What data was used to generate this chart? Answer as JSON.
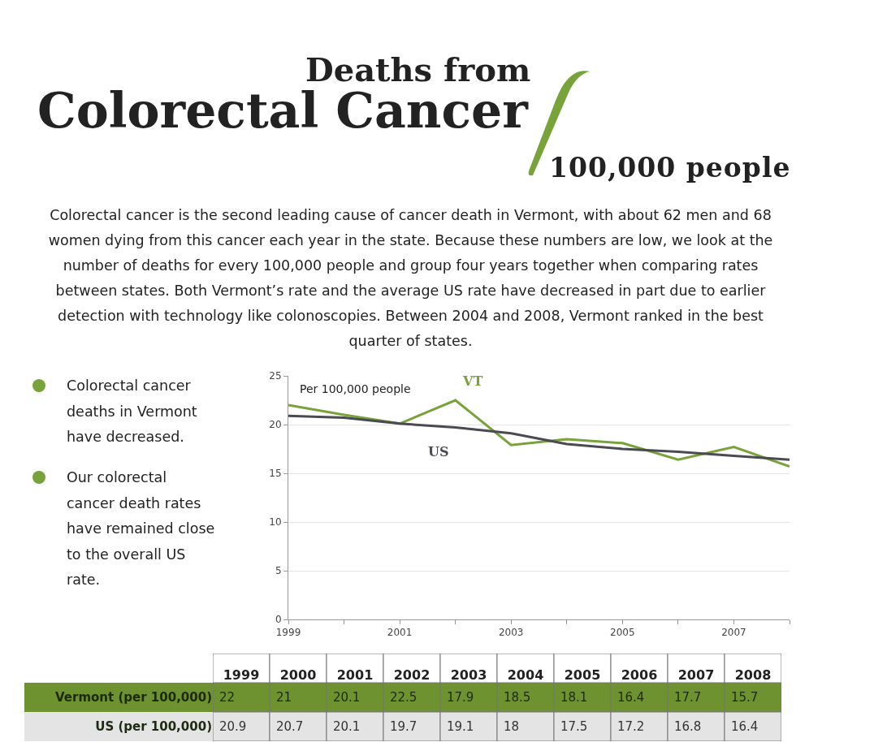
{
  "chart_data": [
    {
      "type": "line",
      "title": "Deaths from Colorectal Cancer",
      "subtitle": "100,000 people",
      "ylabel": "Per 100,000 people",
      "annotations": [
        "Colorectal cancer is the second leading cause of cancer death in Vermont, with about 62 men and 68 women dying from this cancer each year in the state. Because these numbers are low, we look at the number of deaths for every 100,000 people and group four years together when comparing rates between states. Both Vermont’s rate and the average US rate have decreased in part due to earlier detection with technology like colonoscopies. Between 2004 and 2008, Vermont ranked in the best quarter of states.",
        "Colorectal cancer deaths in Vermont have decreased.",
        "Our colorectal cancer death rates have remained close to the overall US rate."
      ],
      "x": [
        1999,
        2000,
        2001,
        2002,
        2003,
        2004,
        2005,
        2006,
        2007,
        2008
      ],
      "series": [
        {
          "name": "VT",
          "color": "#78a23a",
          "values": [
            22,
            21,
            20.1,
            22.5,
            17.9,
            18.5,
            18.1,
            16.4,
            17.7,
            15.7
          ]
        },
        {
          "name": "US",
          "color": "#4a4a52",
          "values": [
            20.9,
            20.7,
            20.1,
            19.7,
            19.1,
            18,
            17.5,
            17.2,
            16.8,
            16.4
          ]
        }
      ],
      "xlim": [
        1999,
        2008
      ],
      "xticks": [
        1999,
        {
          "value": 2000,
          "label": null
        },
        2001,
        {
          "value": 2002,
          "label": null
        },
        2003,
        {
          "value": 2004,
          "label": null
        },
        2005,
        {
          "value": 2006,
          "label": null
        },
        2007,
        {
          "value": 2008,
          "label": null
        }
      ],
      "ylim": [
        0,
        25
      ],
      "yticks": [
        0,
        5,
        10,
        15,
        20,
        25
      ],
      "grid": "y",
      "legend": false,
      "marker": "none",
      "line_style": "solid"
    },
    {
      "type": "heatmap",
      "categories": [
        "1999",
        "2000",
        "2001",
        "2002",
        "2003",
        "2004",
        "2005",
        "2006",
        "2007",
        "2008"
      ],
      "y_categories": [
        "Vermont (per 100,000)",
        "US (per 100,000)"
      ],
      "cells": [
        [
          22,
          21,
          20.1,
          22.5,
          17.9,
          18.5,
          18.1,
          16.4,
          17.7,
          15.7
        ],
        [
          20.9,
          20.7,
          20.1,
          19.7,
          19.1,
          18,
          17.5,
          17.2,
          16.8,
          16.4
        ]
      ],
      "colors": [
        "#6e9230",
        "#e4e4e4"
      ],
      "data_labels": true
    }
  ]
}
